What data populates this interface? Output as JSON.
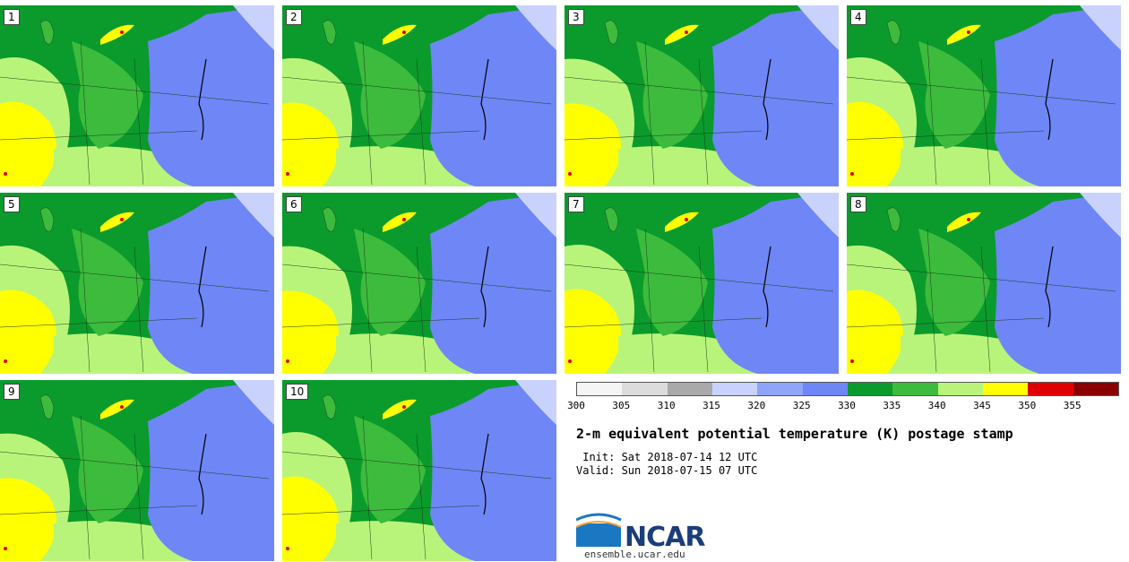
{
  "panels": [
    {
      "label": "1"
    },
    {
      "label": "2"
    },
    {
      "label": "3"
    },
    {
      "label": "4"
    },
    {
      "label": "5"
    },
    {
      "label": "6"
    },
    {
      "label": "7"
    },
    {
      "label": "8"
    },
    {
      "label": "9"
    },
    {
      "label": "10"
    }
  ],
  "colorbar": {
    "ticks": [
      "300",
      "305",
      "310",
      "315",
      "320",
      "325",
      "330",
      "335",
      "340",
      "345",
      "350",
      "355"
    ],
    "colors": [
      "#f5f5f5",
      "#dcdcdc",
      "#a9a9a9",
      "#c8d2fc",
      "#8fa4fb",
      "#6f86f7",
      "#0a9b2c",
      "#3dbb3d",
      "#b9f47a",
      "#ffff00",
      "#e00000",
      "#8a0000"
    ]
  },
  "title": "2-m equivalent potential temperature (K) postage stamp",
  "init": " Init: Sat 2018-07-14 12 UTC",
  "valid": "Valid: Sun 2018-07-15 07 UTC",
  "logo": {
    "name": "NCAR",
    "url": "ensemble.ucar.edu"
  }
}
